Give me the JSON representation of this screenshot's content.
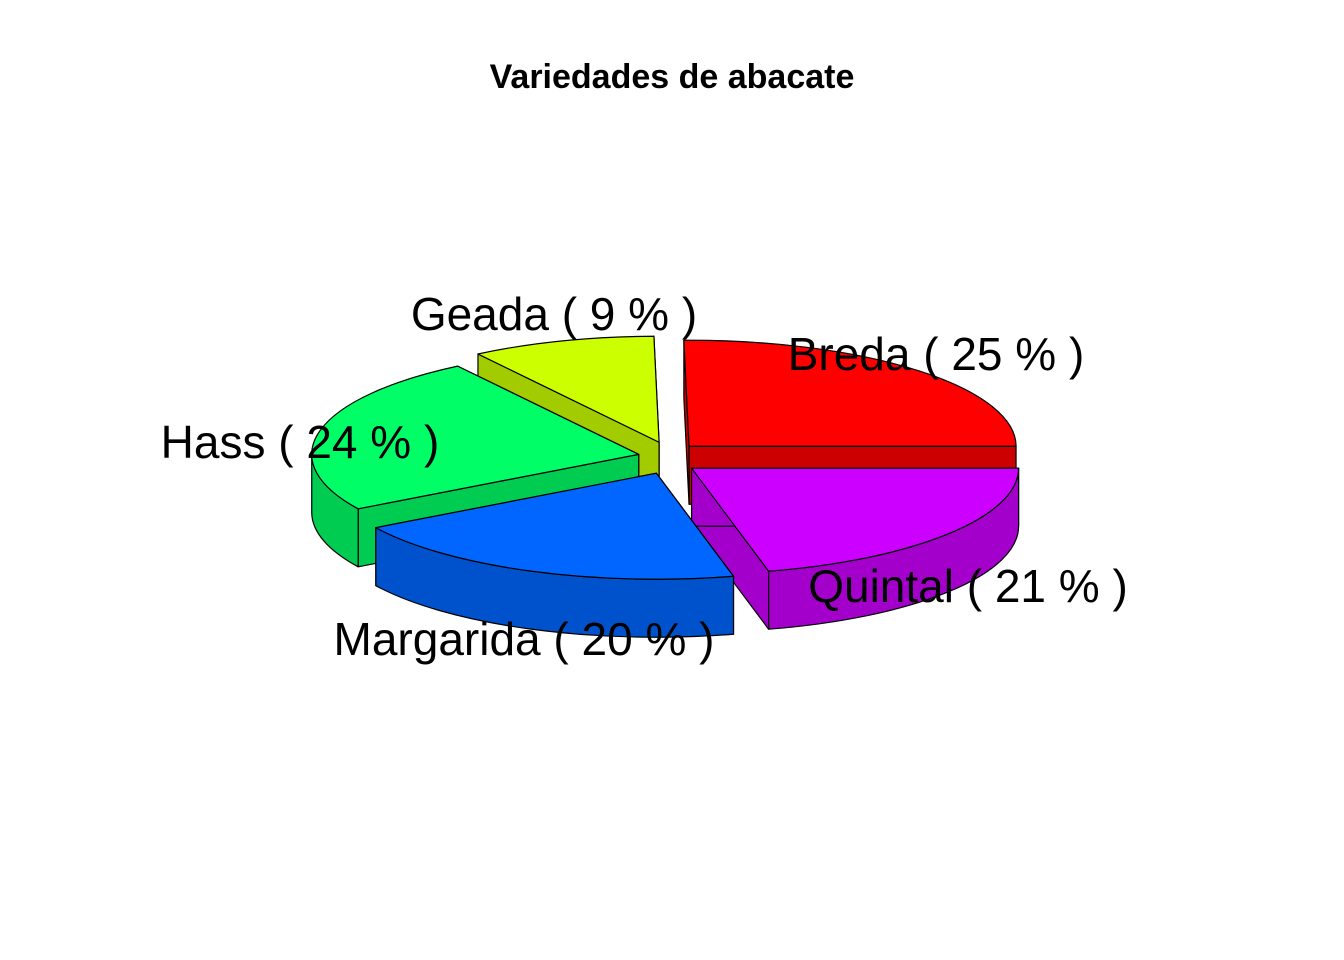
{
  "chart_data": {
    "type": "pie",
    "title": "Variedades de abacate",
    "slices": [
      {
        "label": "Breda",
        "percent": 25,
        "display": "Breda ( 25 % )",
        "color": "#ff0000",
        "side_color": "#cc0000"
      },
      {
        "label": "Geada",
        "percent": 9,
        "display": "Geada ( 9 % )",
        "color": "#ccff00",
        "side_color": "#a3cc00"
      },
      {
        "label": "Hass",
        "percent": 24,
        "display": "Hass ( 24 % )",
        "color": "#00ff66",
        "side_color": "#00cc52"
      },
      {
        "label": "Margarida",
        "percent": 20,
        "display": "Margarida ( 20 % )",
        "color": "#0066ff",
        "side_color": "#0052cc"
      },
      {
        "label": "Quintal",
        "percent": 21,
        "display": "Quintal ( 21 % )",
        "color": "#cc00ff",
        "side_color": "#a300cc"
      }
    ],
    "style": "3d-exploded"
  }
}
